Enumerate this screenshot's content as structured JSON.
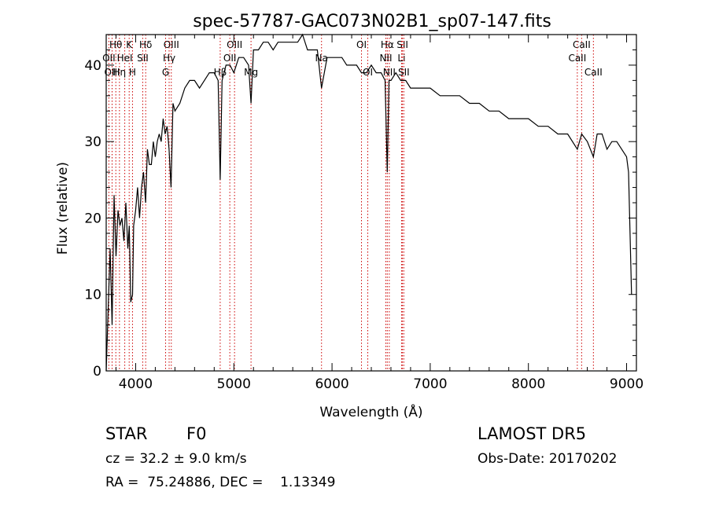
{
  "chart_data": {
    "type": "line",
    "title": "spec-57787-GAC073N02B1_sp07-147.fits",
    "xlabel": "Wavelength (Å)",
    "ylabel": "Flux (relative)",
    "xlim": [
      3700,
      9100
    ],
    "ylim": [
      0,
      44
    ],
    "xticks": [
      4000,
      5000,
      6000,
      7000,
      8000,
      9000
    ],
    "yticks": [
      0,
      10,
      20,
      30,
      40
    ],
    "grid": false,
    "line_color": "#000000",
    "marker_color": "#cc0000",
    "series": [
      {
        "x": [
          3700,
          3720,
          3740,
          3760,
          3780,
          3800,
          3820,
          3840,
          3860,
          3880,
          3900,
          3920,
          3935,
          3950,
          3968,
          3980,
          4000,
          4020,
          4040,
          4060,
          4080,
          4101,
          4120,
          4140,
          4160,
          4180,
          4200,
          4220,
          4240,
          4260,
          4280,
          4300,
          4320,
          4340,
          4360,
          4380,
          4400,
          4450,
          4500,
          4550,
          4600,
          4650,
          4700,
          4750,
          4800,
          4840,
          4861,
          4880,
          4920,
          4960,
          5000,
          5050,
          5100,
          5150,
          5175,
          5200,
          5250,
          5300,
          5350,
          5400,
          5450,
          5500,
          5550,
          5600,
          5650,
          5700,
          5750,
          5800,
          5850,
          5893,
          5950,
          6000,
          6050,
          6100,
          6150,
          6200,
          6250,
          6300,
          6350,
          6400,
          6450,
          6500,
          6540,
          6563,
          6580,
          6600,
          6650,
          6700,
          6750,
          6800,
          6850,
          6900,
          6950,
          7000,
          7100,
          7200,
          7300,
          7400,
          7500,
          7600,
          7700,
          7800,
          7900,
          8000,
          8100,
          8200,
          8300,
          8400,
          8498,
          8542,
          8600,
          8662,
          8700,
          8750,
          8800,
          8850,
          8900,
          8950,
          9000,
          9020,
          9050
        ],
        "y": [
          0,
          8,
          16,
          6,
          23,
          15,
          21,
          19,
          20,
          17,
          22,
          16,
          19,
          9,
          10,
          19,
          21,
          24,
          20,
          24,
          26,
          22,
          29,
          27,
          27,
          30,
          28,
          30,
          31,
          30,
          33,
          31,
          32,
          29,
          24,
          35,
          34,
          35,
          37,
          38,
          38,
          37,
          38,
          39,
          39,
          38,
          25,
          38,
          40,
          40,
          39,
          41,
          41,
          40,
          35,
          42,
          42,
          43,
          43,
          42,
          43,
          43,
          43,
          43,
          43,
          44,
          42,
          42,
          42,
          37,
          41,
          41,
          41,
          41,
          40,
          40,
          40,
          39,
          39,
          40,
          39,
          39,
          38,
          26,
          38,
          38,
          39,
          38,
          38,
          37,
          37,
          37,
          37,
          37,
          36,
          36,
          36,
          35,
          35,
          34,
          34,
          33,
          33,
          33,
          32,
          32,
          31,
          31,
          29,
          31,
          30,
          28,
          31,
          31,
          29,
          30,
          30,
          29,
          28,
          26,
          10
        ]
      }
    ],
    "line_markers": [
      {
        "label": "Hθ",
        "x": 3798,
        "row": 1
      },
      {
        "label": "K",
        "x": 3934,
        "row": 1
      },
      {
        "label": "Hδ",
        "x": 4102,
        "row": 1
      },
      {
        "label": "OIII",
        "x": 4363,
        "row": 1
      },
      {
        "label": "OIII",
        "x": 5007,
        "row": 1
      },
      {
        "label": "OI",
        "x": 6300,
        "row": 1
      },
      {
        "label": "Hα",
        "x": 6563,
        "row": 1
      },
      {
        "label": "SII",
        "x": 6717,
        "row": 1
      },
      {
        "label": "CaII",
        "x": 8542,
        "row": 1
      },
      {
        "label": "OII",
        "x": 3727,
        "row": 2
      },
      {
        "label": "HeI",
        "x": 3889,
        "row": 2
      },
      {
        "label": "SII",
        "x": 4072,
        "row": 2
      },
      {
        "label": "Hγ",
        "x": 4341,
        "row": 2
      },
      {
        "label": "OII",
        "x": 4959,
        "row": 2
      },
      {
        "label": "Na",
        "x": 5893,
        "row": 2
      },
      {
        "label": "NII",
        "x": 6548,
        "row": 2
      },
      {
        "label": "Li",
        "x": 6708,
        "row": 2
      },
      {
        "label": "CaII",
        "x": 8498,
        "row": 2
      },
      {
        "label": "OIII",
        "x": 3760,
        "row": 3
      },
      {
        "label": "Hη",
        "x": 3835,
        "row": 3
      },
      {
        "label": "H",
        "x": 3968,
        "row": 3
      },
      {
        "label": "G",
        "x": 4305,
        "row": 3
      },
      {
        "label": "Hβ",
        "x": 4861,
        "row": 3
      },
      {
        "label": "Mg",
        "x": 5175,
        "row": 3
      },
      {
        "label": "OI",
        "x": 6364,
        "row": 3
      },
      {
        "label": "NII",
        "x": 6583,
        "row": 3
      },
      {
        "label": "SII",
        "x": 6731,
        "row": 3
      },
      {
        "label": "CaII",
        "x": 8662,
        "row": 3
      }
    ]
  },
  "info": {
    "object_class": "STAR",
    "subclass": "F0",
    "survey": "LAMOST DR5",
    "redshift_text": "cz = 32.2 ± 9.0 km/s",
    "obs_date_text": "Obs-Date: 20170202",
    "coords_text": "RA =  75.24886, DEC =    1.13349"
  }
}
